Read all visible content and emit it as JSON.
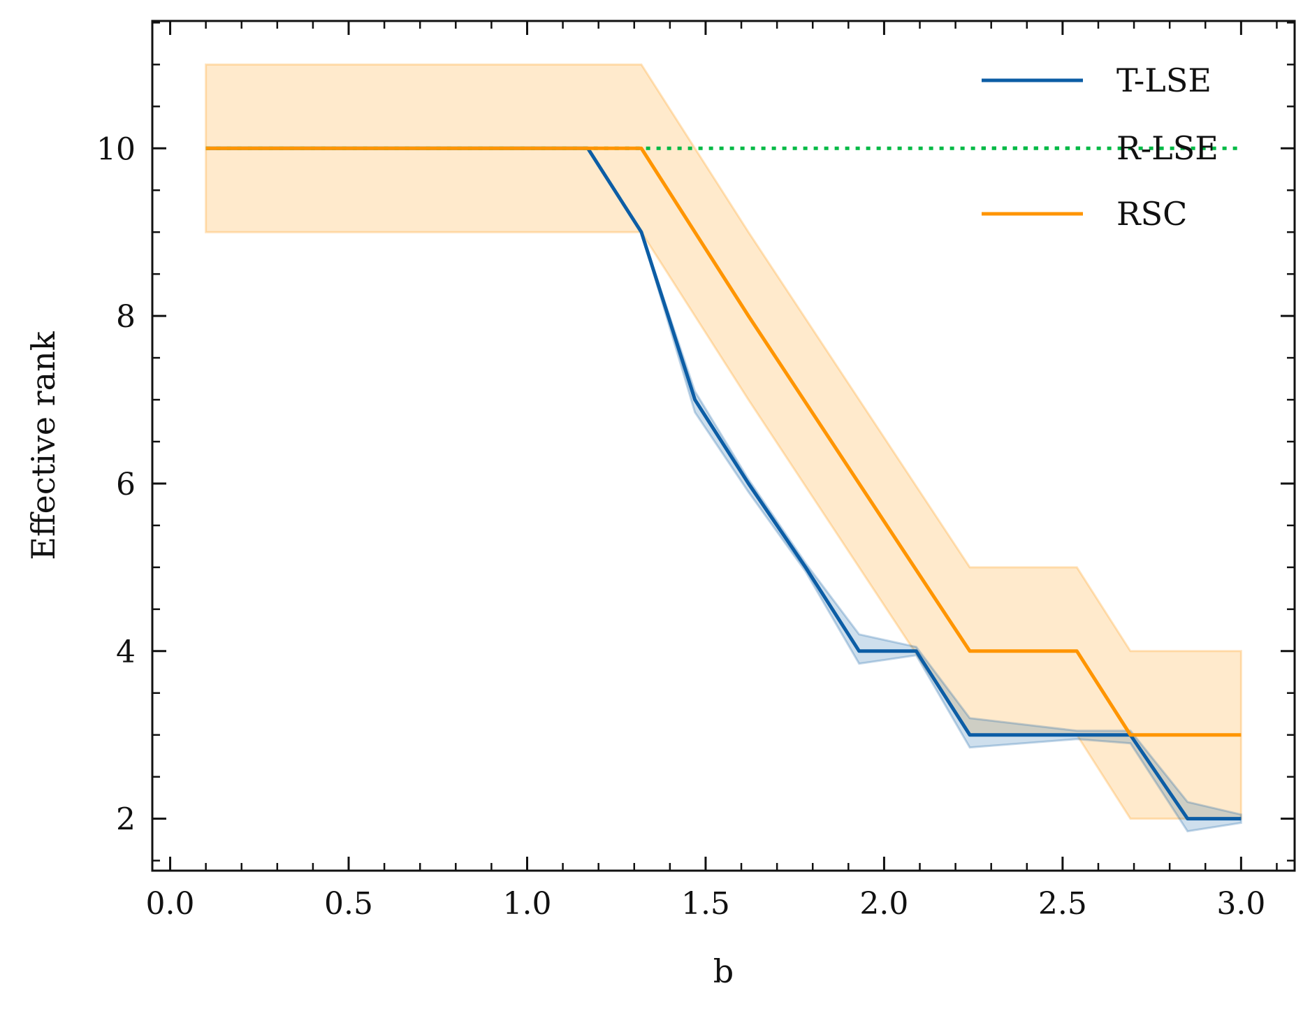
{
  "chart_data": {
    "type": "line",
    "title": "",
    "xlabel": "b",
    "ylabel": "Effective rank",
    "xlim": [
      -0.05,
      3.15
    ],
    "ylim": [
      1.38,
      11.52
    ],
    "xticks": [
      0.0,
      0.5,
      1.0,
      1.5,
      2.0,
      2.5,
      3.0
    ],
    "xtick_labels": [
      "0.0",
      "0.5",
      "1.0",
      "1.5",
      "2.0",
      "2.5",
      "3.0"
    ],
    "yticks": [
      2,
      4,
      6,
      8,
      10
    ],
    "ytick_labels": [
      "2",
      "4",
      "6",
      "8",
      "10"
    ],
    "grid": false,
    "legend_position": "top-right",
    "series": [
      {
        "name": "T-LSE",
        "color": "#0c5da5",
        "style": "solid",
        "x": [
          0.1,
          1.17,
          1.32,
          1.47,
          1.62,
          1.78,
          1.93,
          2.09,
          2.24,
          2.54,
          2.69,
          2.85,
          3.0
        ],
        "y": [
          10,
          10,
          9,
          7,
          6,
          5,
          4,
          4,
          3,
          3,
          3,
          2,
          2
        ],
        "band_lower": [
          10,
          10,
          9,
          6.85,
          5.9,
          4.95,
          3.85,
          3.95,
          2.85,
          2.95,
          2.9,
          1.85,
          1.95
        ],
        "band_upper": [
          10,
          10,
          9,
          7.1,
          6.05,
          5.05,
          4.2,
          4.05,
          3.2,
          3.05,
          3.05,
          2.2,
          2.05
        ]
      },
      {
        "name": "R-LSE",
        "color": "#00b945",
        "style": "dotted",
        "x": [
          0.1,
          3.0
        ],
        "y": [
          10,
          10
        ]
      },
      {
        "name": "RSC",
        "color": "#ff9500",
        "style": "solid",
        "x": [
          0.1,
          1.32,
          1.62,
          1.93,
          2.24,
          2.54,
          2.69,
          3.0
        ],
        "y": [
          10,
          10,
          8,
          6,
          4,
          4,
          3,
          3
        ],
        "band_lower": [
          9,
          9,
          7,
          5,
          3,
          3,
          2,
          2
        ],
        "band_upper": [
          11,
          11,
          9,
          7,
          5,
          5,
          4,
          4
        ]
      }
    ]
  }
}
